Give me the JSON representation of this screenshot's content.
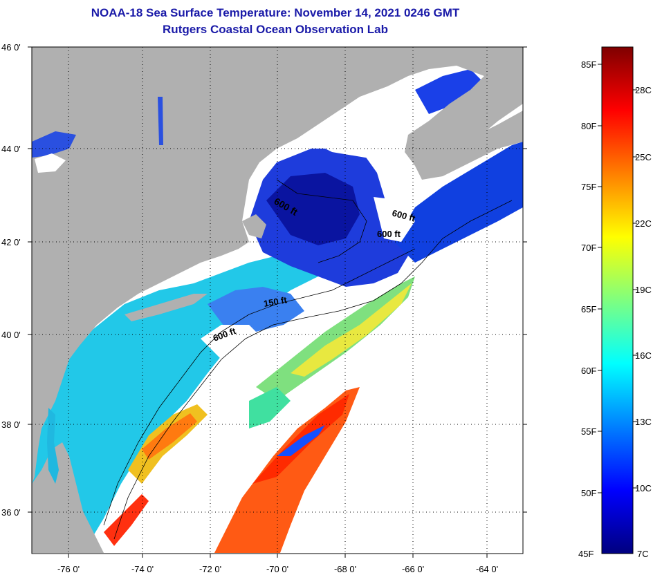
{
  "title": "NOAA-18 Sea Surface Temperature:  November 14, 2021 0246 GMT",
  "subtitle": "Rutgers Coastal Ocean Observation Lab",
  "map": {
    "lat_ticks": [
      "46 0'",
      "44 0'",
      "42 0'",
      "40 0'",
      "38 0'",
      "36 0'"
    ],
    "lon_ticks": [
      "-76 0'",
      "-74 0'",
      "-72 0'",
      "-70 0'",
      "-68 0'",
      "-66 0'",
      "-64 0'"
    ],
    "contour_labels": [
      "600 ft",
      "600 ft",
      "600 ft",
      "150 ft",
      "600 ft"
    ],
    "colors": {
      "land": "#b0b0b0",
      "cloud": "#ffffff",
      "grid": "#000000"
    }
  },
  "colorbar": {
    "f_labels": [
      "85F",
      "80F",
      "75F",
      "70F",
      "65F",
      "60F",
      "55F",
      "50F",
      "45F"
    ],
    "c_labels": [
      "28C",
      "25C",
      "22C",
      "19C",
      "16C",
      "13C",
      "10C",
      "7C"
    ],
    "stops": [
      "#00007f",
      "#0000ff",
      "#007fff",
      "#00ffff",
      "#7fff7f",
      "#ffff00",
      "#ff7f00",
      "#ff0000",
      "#7f0000"
    ]
  }
}
